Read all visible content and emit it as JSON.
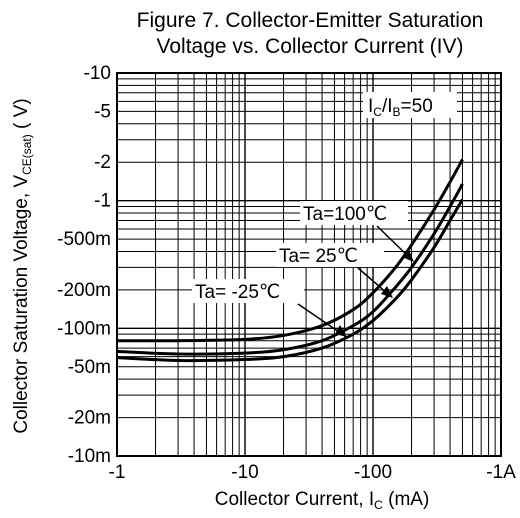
{
  "chart_data": {
    "type": "line",
    "title_line1": "Figure 7. Collector-Emitter Saturation",
    "title_line2": "Voltage vs. Collector Current (IV)",
    "xlabel": {
      "main": "Collector Current, I",
      "sub": "C",
      "tail": " (mA)"
    },
    "ylabel": {
      "main": "Collector  Saturation Voltage, V",
      "sub": "CE(sat)",
      "tail": " ( V)"
    },
    "x_scale": "log",
    "y_scale": "log",
    "x_range": [
      -1,
      -1000
    ],
    "y_range": [
      -0.01,
      -10
    ],
    "x_ticks": [
      {
        "value": -1,
        "label": "-1"
      },
      {
        "value": -10,
        "label": "-10"
      },
      {
        "value": -100,
        "label": "-100"
      },
      {
        "value": -1000,
        "label": "-1A"
      }
    ],
    "y_ticks": [
      {
        "value": -10,
        "label": "-10"
      },
      {
        "value": -5,
        "label": "-5"
      },
      {
        "value": -2,
        "label": "-2"
      },
      {
        "value": -1,
        "label": "-1"
      },
      {
        "value": -0.5,
        "label": "-500m"
      },
      {
        "value": -0.2,
        "label": "-200m"
      },
      {
        "value": -0.1,
        "label": "-100m"
      },
      {
        "value": -0.05,
        "label": "-50m"
      },
      {
        "value": -0.02,
        "label": "-20m"
      },
      {
        "value": -0.01,
        "label": "-10m"
      }
    ],
    "grid": true,
    "condition": {
      "main": "I",
      "sub1": "C",
      "mid": "/I",
      "sub2": "B",
      "tail": "=50"
    },
    "series": [
      {
        "name": "Ta=100℃",
        "x": [
          -1,
          -3,
          -10,
          -20,
          -40,
          -70,
          -100,
          -150,
          -200,
          -300,
          -400,
          -500
        ],
        "y": [
          -0.08,
          -0.08,
          -0.082,
          -0.088,
          -0.105,
          -0.14,
          -0.19,
          -0.3,
          -0.45,
          -0.85,
          -1.4,
          -2.1
        ]
      },
      {
        "name": "Ta= 25℃",
        "x": [
          -1,
          -3,
          -10,
          -20,
          -40,
          -70,
          -100,
          -150,
          -200,
          -300,
          -400,
          -500
        ],
        "y": [
          -0.066,
          -0.063,
          -0.064,
          -0.068,
          -0.08,
          -0.105,
          -0.135,
          -0.21,
          -0.3,
          -0.55,
          -0.9,
          -1.35
        ]
      },
      {
        "name": "Ta= -25℃",
        "x": [
          -1,
          -3,
          -10,
          -20,
          -40,
          -70,
          -100,
          -150,
          -200,
          -300,
          -400,
          -500
        ],
        "y": [
          -0.059,
          -0.056,
          -0.057,
          -0.06,
          -0.07,
          -0.09,
          -0.115,
          -0.17,
          -0.24,
          -0.43,
          -0.7,
          -1.02
        ]
      }
    ]
  }
}
